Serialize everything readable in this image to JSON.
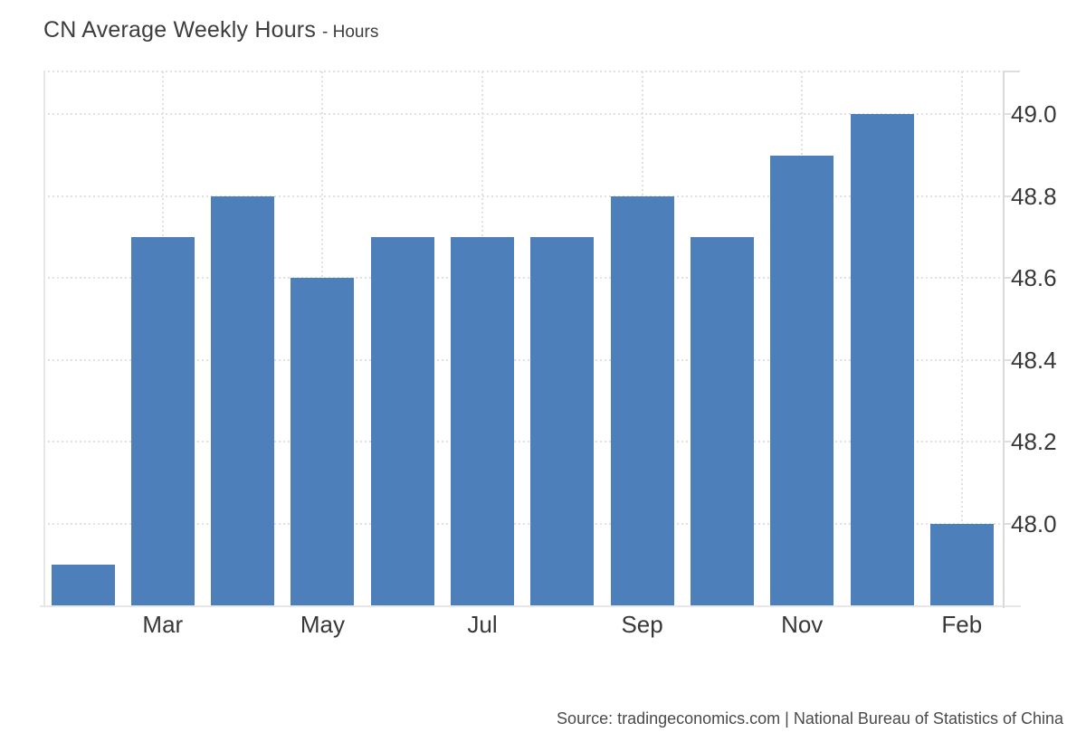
{
  "header": {
    "title": "CN Average Weekly Hours",
    "subtitle": "- Hours"
  },
  "footer": {
    "source": "Source: tradingeconomics.com | National Bureau of Statistics of China"
  },
  "chart_data": {
    "type": "bar",
    "title": "CN Average Weekly Hours - Hours",
    "categories": [
      "",
      "Mar",
      "",
      "May",
      "",
      "Jul",
      "",
      "Sep",
      "",
      "Nov",
      "",
      "Feb"
    ],
    "values": [
      47.9,
      48.7,
      48.8,
      48.6,
      48.7,
      48.7,
      48.7,
      48.8,
      48.7,
      48.9,
      49.0,
      48.0
    ],
    "y_ticks": [
      48.0,
      48.2,
      48.4,
      48.6,
      48.8,
      49.0
    ],
    "y_tick_labels": [
      "48.0",
      "48.2",
      "48.4",
      "48.6",
      "48.8",
      "49.0"
    ],
    "ylim": [
      47.8,
      49.105
    ],
    "xlabel": "",
    "ylabel": "",
    "grid": "dotted-both-axes",
    "legend": "none",
    "y_axis_side": "right"
  },
  "colors": {
    "bar": "#4d80bb",
    "grid": "#e0e0e0",
    "axis_line": "#d9d9d9",
    "plot_border": "#e7e7e7",
    "tick_label_text": "#383838",
    "title_text": "#3d3d3d",
    "source_text": "#4a4a4a",
    "background": "#ffffff"
  }
}
